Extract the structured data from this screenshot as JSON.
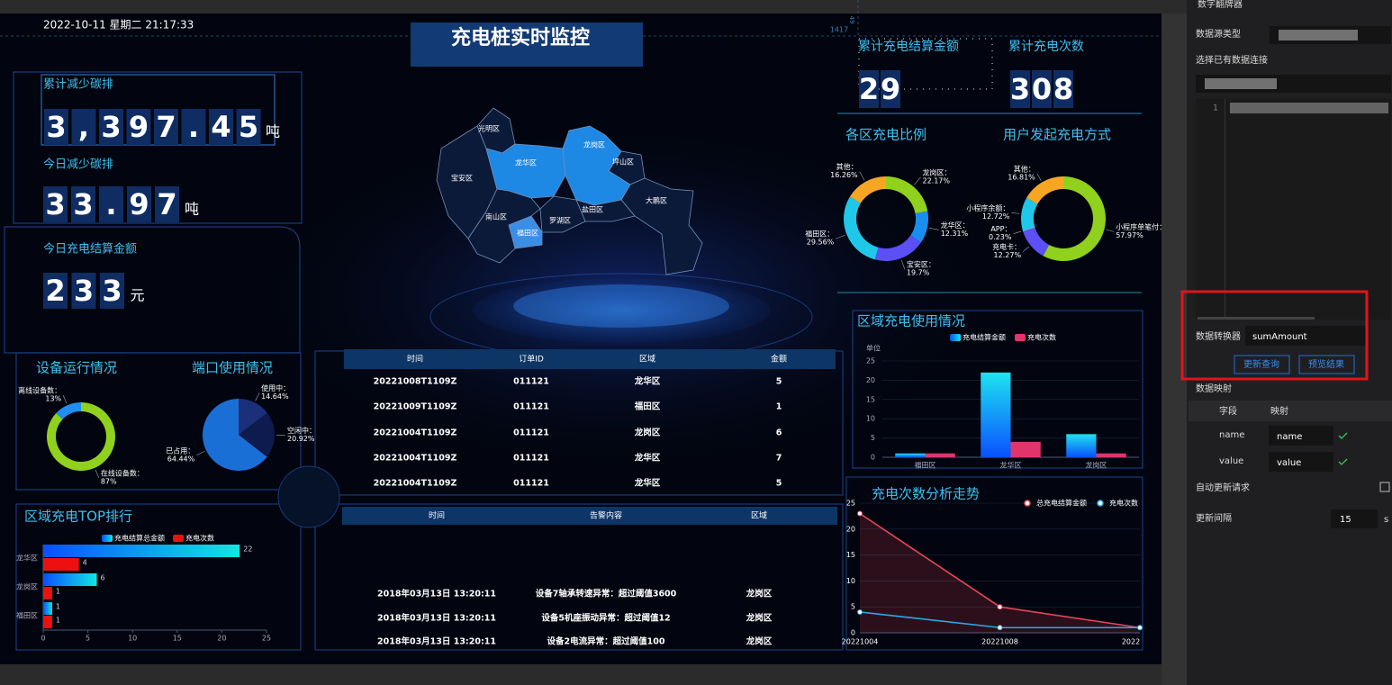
{
  "header": {
    "datetime": "2022-10-11 星期二 21:17:33",
    "title": "充电桩实时监控",
    "ruler_marks": [
      "1417",
      "49"
    ]
  },
  "counters": [
    {
      "label": "累计减少碳排",
      "digits": [
        "3",
        ",",
        "3",
        "9",
        "7",
        ".",
        "4",
        "5"
      ],
      "unit": "吨"
    },
    {
      "label": "今日减少碳排",
      "digits": [
        "3",
        "3",
        ".",
        "9",
        "7"
      ],
      "unit": "吨"
    },
    {
      "label": "今日充电结算金额",
      "digits": [
        "2",
        "3",
        "3"
      ],
      "unit": "元"
    },
    {
      "label": "累计充电结算金额",
      "digits": [
        "2",
        "9"
      ]
    },
    {
      "label": "累计充电次数",
      "digits": [
        "3",
        "0",
        "8"
      ]
    }
  ],
  "map": {
    "regions": [
      "光明区",
      "宝安区",
      "龙华区",
      "龙岗区",
      "坪山区",
      "大鹏区",
      "盐田区",
      "罗湖区",
      "福田区",
      "南山区"
    ]
  },
  "chart_data": [
    {
      "type": "donut",
      "title": "设备运行情况",
      "categories": [
        "在线设备数：",
        "离线设备数："
      ],
      "values": [
        87,
        13
      ],
      "value_labels": [
        "87%",
        "13%"
      ],
      "colors": [
        "#8fd11c",
        "#1f8ef0"
      ]
    },
    {
      "type": "pie",
      "title": "端口使用情况",
      "categories": [
        "使用中：",
        "空闲中：",
        "已占用："
      ],
      "values": [
        14.64,
        20.92,
        64.44
      ],
      "value_labels": [
        "14.64%",
        "20.92%",
        "64.44%"
      ],
      "colors": [
        "#1b2f7a",
        "#0d1b4f",
        "#1a6fd6"
      ]
    },
    {
      "type": "donut",
      "title": "各区充电比例",
      "categories": [
        "龙岗区：",
        "龙华区：",
        "宝安区：",
        "福田区：",
        "其他："
      ],
      "values": [
        22.17,
        12.31,
        19.7,
        29.56,
        16.26
      ],
      "value_labels": [
        "22.17%",
        "12.31%",
        "19.7%",
        "29.56%",
        "16.26%"
      ],
      "colors": [
        "#8fd11c",
        "#1a8ef0",
        "#5b4ff5",
        "#1fc8e8",
        "#f6a623"
      ]
    },
    {
      "type": "donut",
      "title": "用户发起充电方式",
      "categories": [
        "小程序单笔付：",
        "充电卡：",
        "APP：",
        "小程序余额：",
        "其他："
      ],
      "values": [
        57.97,
        12.27,
        0.23,
        12.72,
        16.81
      ],
      "value_labels": [
        "57.97%",
        "12.27%",
        "0.23%",
        "12.72%",
        "16.81%"
      ],
      "colors": [
        "#8fd11c",
        "#5b4ff5",
        "#e0e0e0",
        "#1fc8e8",
        "#f6a623"
      ]
    },
    {
      "type": "bar",
      "title": "区域充电使用情况",
      "y_label": "单位",
      "categories": [
        "福田区",
        "龙华区",
        "龙岗区"
      ],
      "series": [
        {
          "name": "充电结算金额",
          "color": "#1ee3f0",
          "values": [
            1,
            22,
            6
          ]
        },
        {
          "name": "充电次数",
          "color": "#e0356a",
          "values": [
            1,
            4,
            1
          ]
        }
      ],
      "ylim": [
        0,
        25
      ],
      "yticks": [
        0,
        5,
        10,
        15,
        20,
        25
      ],
      "grid": true
    },
    {
      "type": "hbar",
      "title": "区域充电TOP排行",
      "categories": [
        "龙华区",
        "龙岗区",
        "福田区"
      ],
      "series": [
        {
          "name": "充电结算总金额",
          "color": "#10e8e0",
          "values": [
            22,
            6,
            1
          ]
        },
        {
          "name": "充电次数",
          "color": "#ee1010",
          "values": [
            4,
            1,
            1
          ]
        }
      ],
      "xlim": [
        0,
        25
      ],
      "xticks": [
        0,
        5,
        10,
        15,
        20,
        25
      ]
    },
    {
      "type": "line",
      "title": "充电次数分析走势",
      "categories": [
        "20221004",
        "20221008",
        "2022"
      ],
      "series": [
        {
          "name": "总充电结算金额",
          "color": "#e8445a",
          "values": [
            23,
            5,
            1
          ]
        },
        {
          "name": "充电次数",
          "color": "#2aa8e6",
          "values": [
            4,
            1,
            1
          ]
        }
      ],
      "ylim": [
        0,
        25
      ],
      "yticks": [
        0,
        5,
        10,
        15,
        20,
        25
      ],
      "grid": true
    }
  ],
  "orders_table": {
    "columns": [
      "时间",
      "订单ID",
      "区域",
      "金额"
    ],
    "rows": [
      [
        "20221008T1109Z",
        "011121",
        "龙华区",
        "5"
      ],
      [
        "20221009T1109Z",
        "011121",
        "福田区",
        "1"
      ],
      [
        "20221004T1109Z",
        "011121",
        "龙岗区",
        "6"
      ],
      [
        "20221004T1109Z",
        "011121",
        "龙华区",
        "7"
      ],
      [
        "20221004T1109Z",
        "011121",
        "龙华区",
        "5"
      ]
    ]
  },
  "alarm_table": {
    "columns": [
      "时间",
      "告警内容",
      "区域"
    ],
    "rows": [
      [
        "2018年03月13日 13:20:11",
        "设备7轴承转速异常：超过阈值3600",
        "龙岗区"
      ],
      [
        "2018年03月13日 13:20:11",
        "设备5机座振动异常：超过阈值12",
        "龙岗区"
      ],
      [
        "2018年03月13日 13:20:11",
        "设备2电流异常：超过阈值100",
        "龙岗区"
      ]
    ]
  },
  "settings_panel": {
    "component": "数字翻牌器",
    "source_type_label": "数据源类型",
    "connection_label": "选择已有数据连接",
    "editor_line": "1",
    "converter_label": "数据转换器",
    "converter_value": "sumAmount",
    "buttons": [
      "更新查询",
      "预览结果"
    ],
    "mapping_label": "数据映射",
    "mapping_columns": [
      "字段",
      "映射"
    ],
    "mapping_rows": [
      [
        "name",
        "name"
      ],
      [
        "value",
        "value"
      ]
    ],
    "auto_update_label": "自动更新请求",
    "interval_label": "更新间隔",
    "interval_value": "15",
    "interval_unit": "s"
  }
}
